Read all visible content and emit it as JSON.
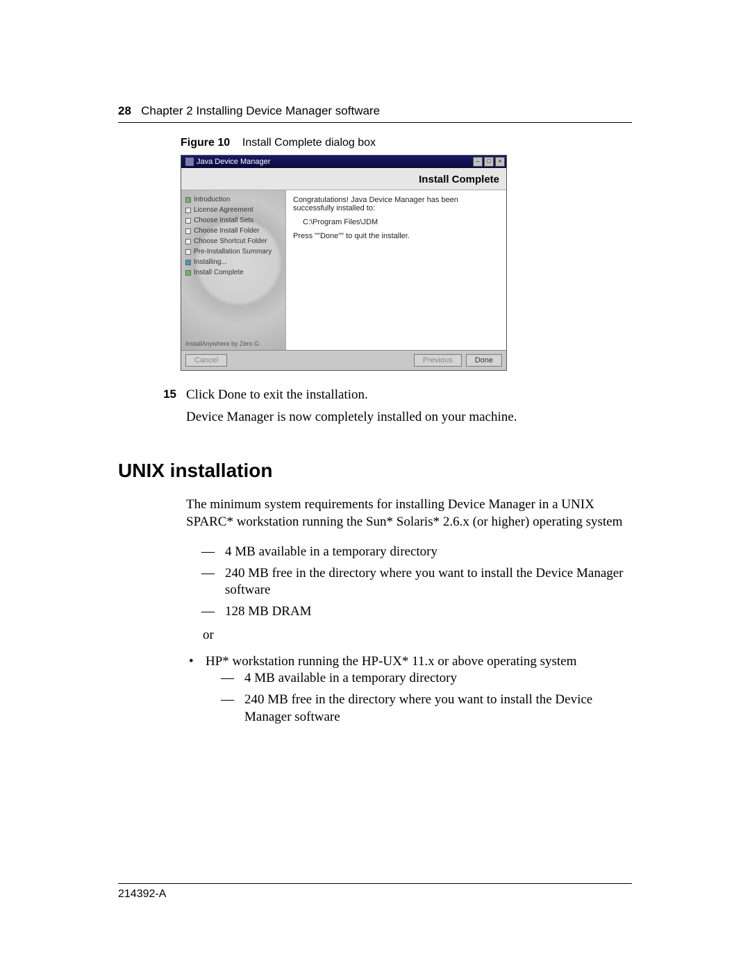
{
  "header": {
    "page_number": "28",
    "chapter_text": "Chapter 2  Installing Device Manager software"
  },
  "figure": {
    "label": "Figure 10",
    "caption": "Install Complete dialog box"
  },
  "installer": {
    "window_title": "Java Device Manager",
    "banner": "Install Complete",
    "steps": [
      "Introduction",
      "License Agreement",
      "Choose Install Sets",
      "Choose Install Folder",
      "Choose Shortcut Folder",
      "Pre-Installation Summary",
      "Installing...",
      "Install Complete"
    ],
    "powered": "InstallAnywhere by Zero G",
    "message_line1": "Congratulations! Java Device Manager has been successfully installed to:",
    "install_path": "C:\\Program Files\\JDM",
    "message_line2": "Press \"\"Done\"\" to quit the installer.",
    "buttons": {
      "cancel": "Cancel",
      "previous": "Previous",
      "done": "Done"
    }
  },
  "step15": {
    "number": "15",
    "text": "Click Done to exit the installation."
  },
  "followup": "Device Manager is now completely installed on your machine.",
  "section_heading": "UNIX installation",
  "intro": "The minimum system requirements for installing Device Manager in a UNIX SPARC* workstation running the Sun* Solaris* 2.6.x (or higher) operating system",
  "dash_list_1": [
    "4 MB available in a temporary directory",
    "240 MB free in the directory where you want to install the Device Manager software",
    "128 MB DRAM"
  ],
  "or_text": "or",
  "bullet_item": "HP* workstation running the HP-UX* 11.x or above operating system",
  "dash_list_2": [
    "4 MB available in a temporary directory",
    "240 MB free in the directory where you want to install the Device Manager software"
  ],
  "footer_doc_id": "214392-A"
}
